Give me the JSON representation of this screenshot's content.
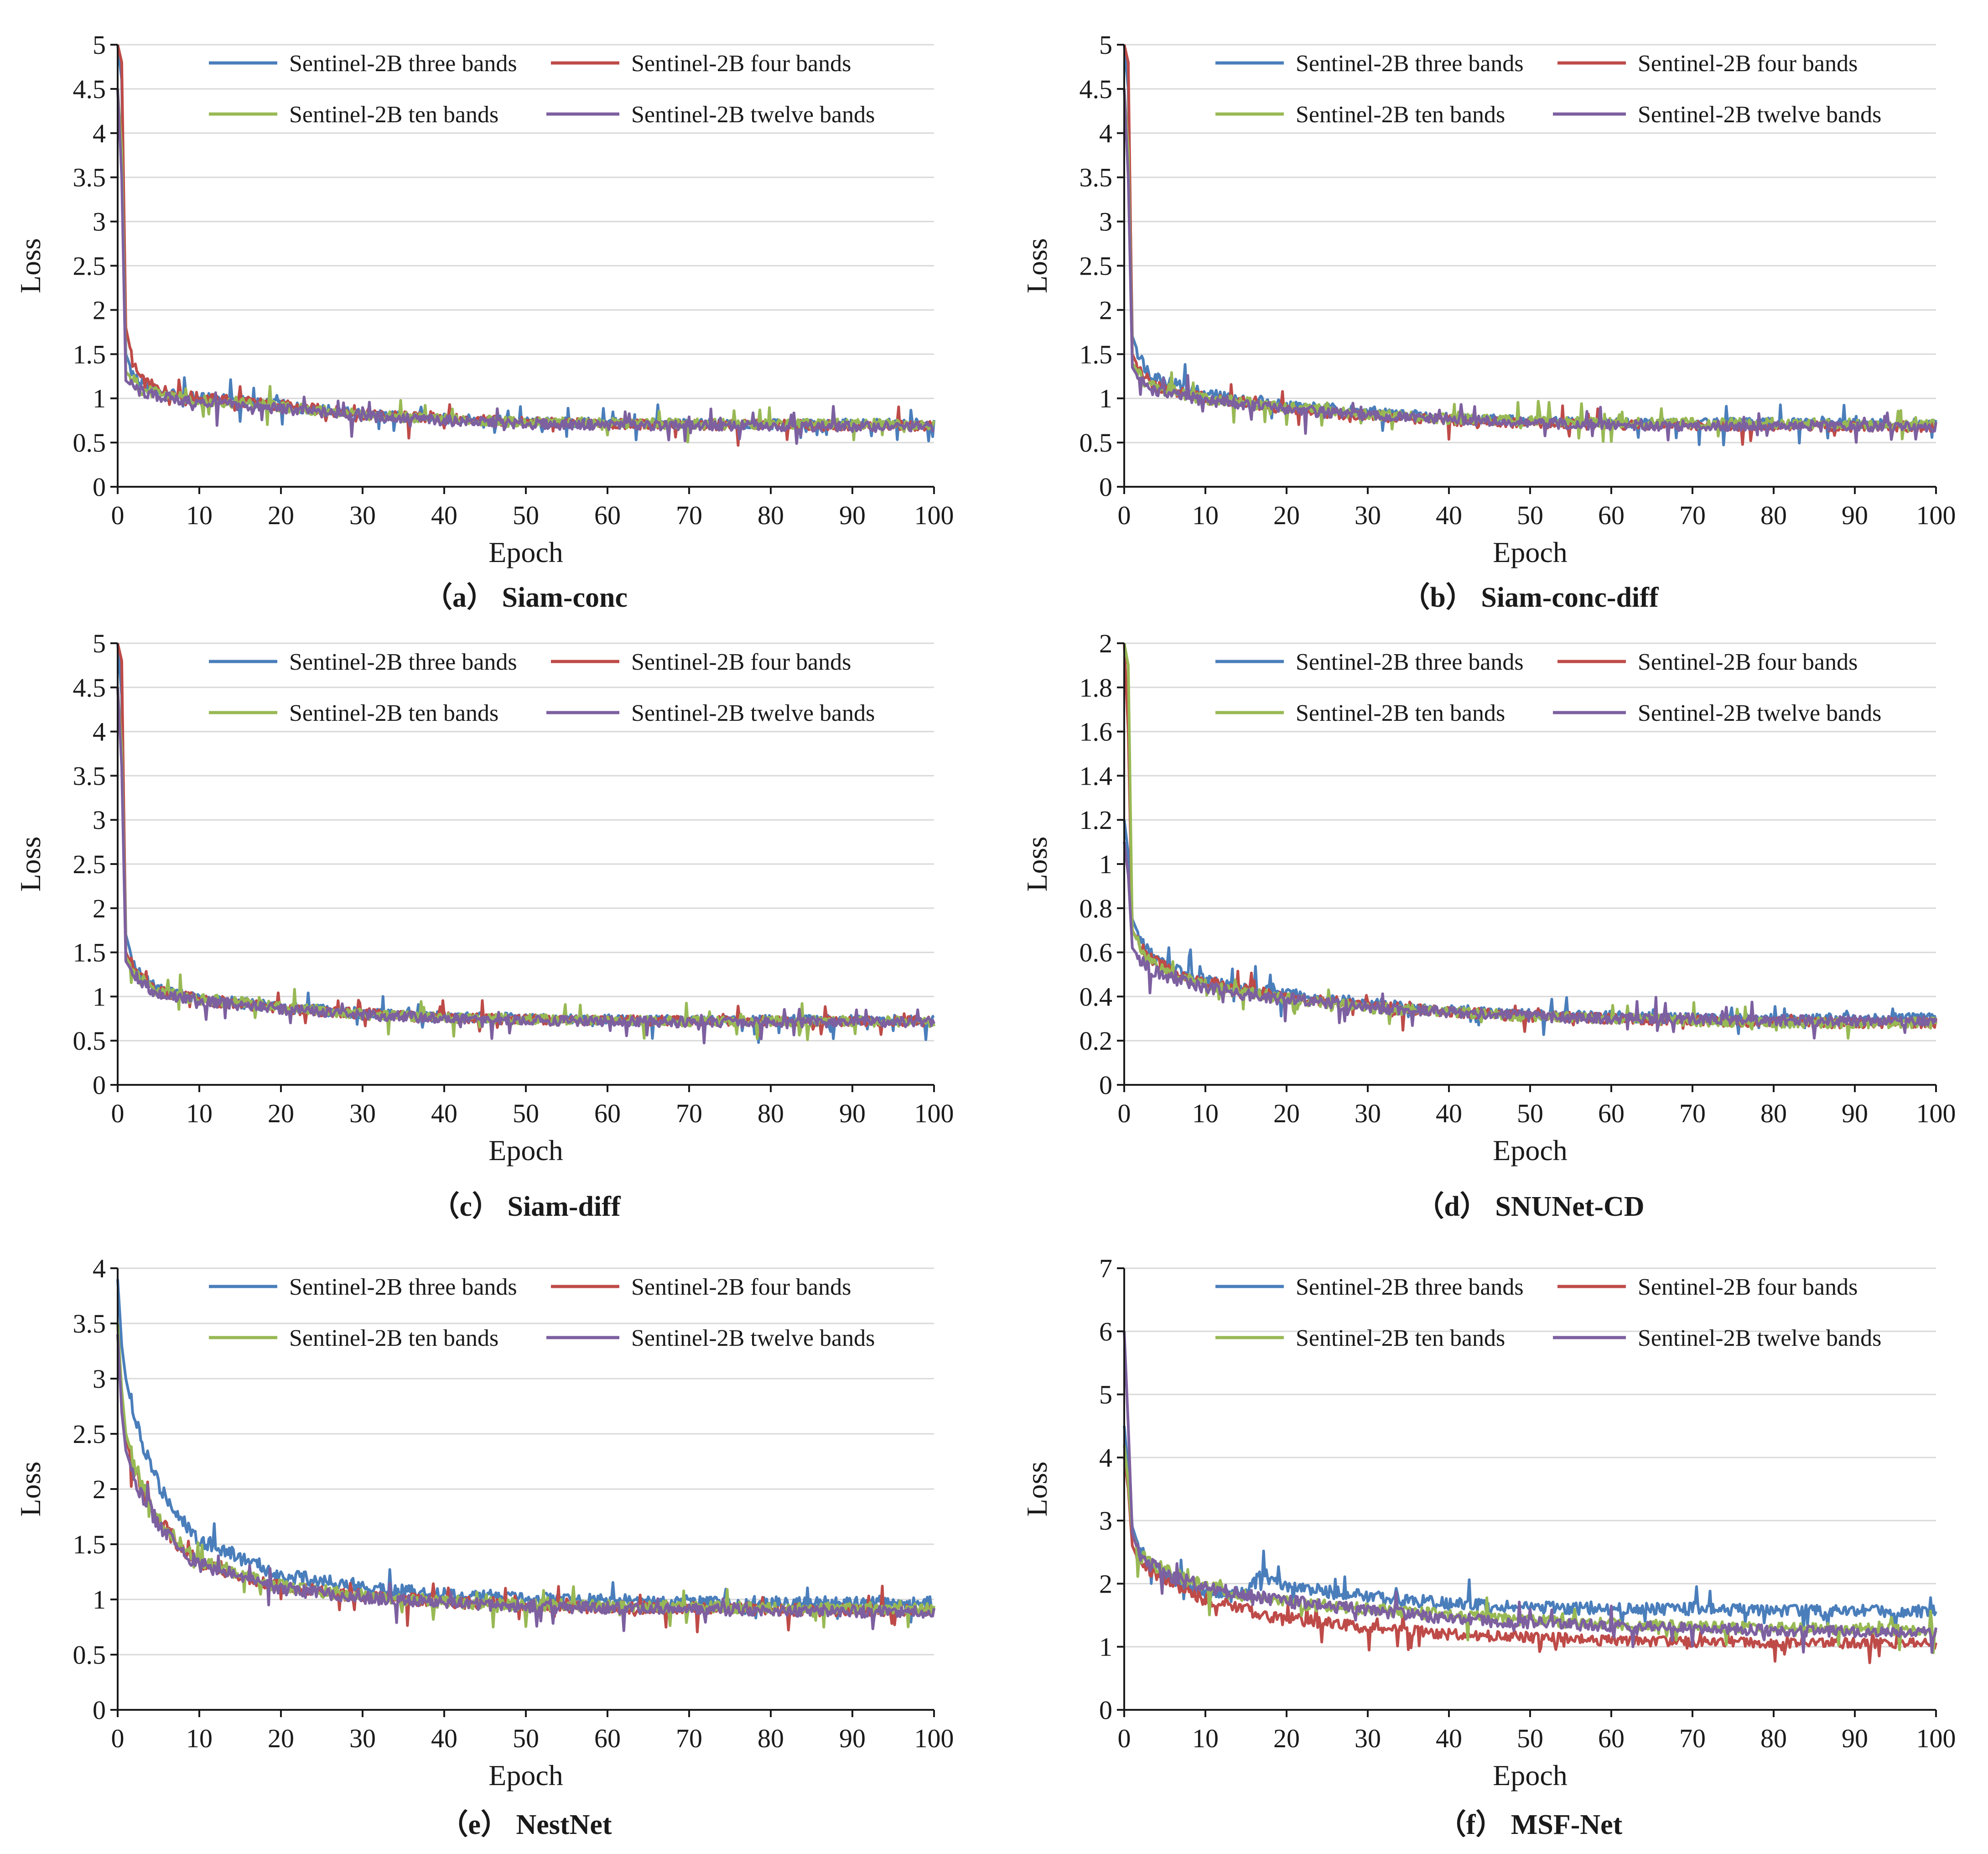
{
  "figure_caption_style": "bold",
  "colors": {
    "three": "#4a7ebb",
    "four": "#be4b48",
    "ten": "#98b954",
    "twelve": "#7d60a0",
    "grid": "#d9d9d9",
    "axis": "#1a1a1a"
  },
  "chart_data": [
    {
      "type": "line",
      "caption": "（a） Siam-conc",
      "xlabel": "Epoch",
      "ylabel": "Loss",
      "xlim": [
        0,
        100
      ],
      "ylim": [
        0,
        5
      ],
      "xticks": [
        0,
        10,
        20,
        30,
        40,
        50,
        60,
        70,
        80,
        90,
        100
      ],
      "yticks": [
        0,
        0.5,
        1,
        1.5,
        2,
        2.5,
        3,
        3.5,
        4,
        4.5,
        5
      ],
      "grid": true,
      "legend": "top",
      "x": [
        0,
        0.5,
        1,
        2,
        3,
        5,
        10,
        15,
        20,
        30,
        40,
        50,
        60,
        70,
        80,
        90,
        100
      ],
      "series": [
        {
          "name": "Sentinel-2B three bands",
          "color_key": "three",
          "values": [
            5,
            4.6,
            1.5,
            1.25,
            1.15,
            1.08,
            1.0,
            0.97,
            0.92,
            0.82,
            0.77,
            0.73,
            0.72,
            0.71,
            0.71,
            0.71,
            0.71
          ]
        },
        {
          "name": "Sentinel-2B four bands",
          "color_key": "four",
          "values": [
            5,
            4.8,
            1.8,
            1.35,
            1.2,
            1.1,
            1.0,
            0.97,
            0.92,
            0.82,
            0.77,
            0.73,
            0.71,
            0.7,
            0.7,
            0.69,
            0.69
          ]
        },
        {
          "name": "Sentinel-2B ten bands",
          "color_key": "ten",
          "values": [
            4.5,
            3.8,
            1.3,
            1.2,
            1.1,
            1.05,
            0.97,
            0.95,
            0.9,
            0.81,
            0.76,
            0.73,
            0.72,
            0.71,
            0.71,
            0.71,
            0.71
          ]
        },
        {
          "name": "Sentinel-2B twelve bands",
          "color_key": "twelve",
          "values": [
            4.5,
            3.5,
            1.2,
            1.12,
            1.07,
            1.02,
            0.95,
            0.92,
            0.88,
            0.8,
            0.75,
            0.71,
            0.7,
            0.69,
            0.69,
            0.68,
            0.68
          ]
        }
      ]
    },
    {
      "type": "line",
      "caption": "（b） Siam-conc-diff",
      "xlabel": "Epoch",
      "ylabel": "Loss",
      "xlim": [
        0,
        100
      ],
      "ylim": [
        0,
        5
      ],
      "xticks": [
        0,
        10,
        20,
        30,
        40,
        50,
        60,
        70,
        80,
        90,
        100
      ],
      "yticks": [
        0,
        0.5,
        1,
        1.5,
        2,
        2.5,
        3,
        3.5,
        4,
        4.5,
        5
      ],
      "grid": true,
      "legend": "top",
      "x": [
        0,
        0.5,
        1,
        2,
        3,
        5,
        10,
        15,
        20,
        30,
        40,
        50,
        60,
        70,
        80,
        90,
        100
      ],
      "series": [
        {
          "name": "Sentinel-2B three bands",
          "color_key": "three",
          "values": [
            5,
            4.5,
            1.7,
            1.45,
            1.3,
            1.2,
            1.05,
            0.97,
            0.92,
            0.85,
            0.78,
            0.74,
            0.72,
            0.72,
            0.72,
            0.71,
            0.71
          ]
        },
        {
          "name": "Sentinel-2B four bands",
          "color_key": "four",
          "values": [
            5,
            4.8,
            1.5,
            1.3,
            1.2,
            1.1,
            1.0,
            0.95,
            0.88,
            0.8,
            0.75,
            0.72,
            0.7,
            0.69,
            0.68,
            0.68,
            0.68
          ]
        },
        {
          "name": "Sentinel-2B ten bands",
          "color_key": "ten",
          "values": [
            4.5,
            3.8,
            1.4,
            1.25,
            1.15,
            1.08,
            1.0,
            0.95,
            0.9,
            0.82,
            0.77,
            0.74,
            0.72,
            0.72,
            0.72,
            0.71,
            0.71
          ]
        },
        {
          "name": "Sentinel-2B twelve bands",
          "color_key": "twelve",
          "values": [
            4.5,
            3.5,
            1.35,
            1.2,
            1.12,
            1.05,
            0.98,
            0.93,
            0.88,
            0.8,
            0.76,
            0.72,
            0.7,
            0.69,
            0.69,
            0.68,
            0.68
          ]
        }
      ]
    },
    {
      "type": "line",
      "caption": "（c） Siam-diff",
      "xlabel": "Epoch",
      "ylabel": "Loss",
      "xlim": [
        0,
        100
      ],
      "ylim": [
        0,
        5
      ],
      "xticks": [
        0,
        10,
        20,
        30,
        40,
        50,
        60,
        70,
        80,
        90,
        100
      ],
      "yticks": [
        0,
        0.5,
        1,
        1.5,
        2,
        2.5,
        3,
        3.5,
        4,
        4.5,
        5
      ],
      "grid": true,
      "legend": "top",
      "x": [
        0,
        0.5,
        1,
        2,
        3,
        5,
        10,
        15,
        20,
        30,
        40,
        50,
        60,
        70,
        80,
        90,
        100
      ],
      "series": [
        {
          "name": "Sentinel-2B three bands",
          "color_key": "three",
          "values": [
            5,
            4.4,
            1.7,
            1.35,
            1.22,
            1.08,
            0.97,
            0.93,
            0.88,
            0.81,
            0.77,
            0.75,
            0.74,
            0.73,
            0.73,
            0.73,
            0.73
          ]
        },
        {
          "name": "Sentinel-2B four bands",
          "color_key": "four",
          "values": [
            5,
            4.8,
            1.5,
            1.3,
            1.2,
            1.06,
            0.96,
            0.92,
            0.87,
            0.8,
            0.76,
            0.74,
            0.73,
            0.72,
            0.72,
            0.72,
            0.72
          ]
        },
        {
          "name": "Sentinel-2B ten bands",
          "color_key": "ten",
          "values": [
            4.5,
            3.8,
            1.45,
            1.28,
            1.18,
            1.05,
            0.97,
            0.93,
            0.88,
            0.8,
            0.76,
            0.74,
            0.73,
            0.72,
            0.72,
            0.72,
            0.72
          ]
        },
        {
          "name": "Sentinel-2B twelve bands",
          "color_key": "twelve",
          "values": [
            4.5,
            3.6,
            1.4,
            1.25,
            1.15,
            1.03,
            0.95,
            0.91,
            0.86,
            0.79,
            0.75,
            0.73,
            0.72,
            0.71,
            0.71,
            0.71,
            0.71
          ]
        }
      ]
    },
    {
      "type": "line",
      "caption": "（d） SNUNet-CD",
      "xlabel": "Epoch",
      "ylabel": "Loss",
      "xlim": [
        0,
        100
      ],
      "ylim": [
        0,
        2
      ],
      "xticks": [
        0,
        10,
        20,
        30,
        40,
        50,
        60,
        70,
        80,
        90,
        100
      ],
      "yticks": [
        0,
        0.2,
        0.4,
        0.6,
        0.8,
        1,
        1.2,
        1.4,
        1.6,
        1.8,
        2
      ],
      "grid": true,
      "legend": "top",
      "x": [
        0,
        0.5,
        1,
        2,
        3,
        5,
        10,
        15,
        20,
        30,
        40,
        50,
        60,
        70,
        80,
        90,
        100
      ],
      "series": [
        {
          "name": "Sentinel-2B three bands",
          "color_key": "three",
          "values": [
            1.2,
            1.05,
            0.75,
            0.66,
            0.6,
            0.54,
            0.47,
            0.44,
            0.41,
            0.37,
            0.34,
            0.32,
            0.31,
            0.3,
            0.3,
            0.3,
            0.3
          ]
        },
        {
          "name": "Sentinel-2B four bands",
          "color_key": "four",
          "values": [
            2.0,
            1.6,
            0.7,
            0.63,
            0.58,
            0.53,
            0.46,
            0.43,
            0.4,
            0.36,
            0.33,
            0.31,
            0.3,
            0.29,
            0.28,
            0.28,
            0.28
          ]
        },
        {
          "name": "Sentinel-2B ten bands",
          "color_key": "ten",
          "values": [
            2.0,
            1.9,
            0.7,
            0.62,
            0.57,
            0.52,
            0.45,
            0.42,
            0.39,
            0.35,
            0.33,
            0.31,
            0.3,
            0.29,
            0.28,
            0.28,
            0.28
          ]
        },
        {
          "name": "Sentinel-2B twelve bands",
          "color_key": "twelve",
          "values": [
            1.1,
            0.95,
            0.62,
            0.57,
            0.53,
            0.49,
            0.44,
            0.41,
            0.39,
            0.35,
            0.33,
            0.31,
            0.3,
            0.3,
            0.29,
            0.29,
            0.29
          ]
        }
      ]
    },
    {
      "type": "line",
      "caption": "（e） NestNet",
      "xlabel": "Epoch",
      "ylabel": "Loss",
      "xlim": [
        0,
        100
      ],
      "ylim": [
        0,
        4
      ],
      "xticks": [
        0,
        10,
        20,
        30,
        40,
        50,
        60,
        70,
        80,
        90,
        100
      ],
      "yticks": [
        0,
        0.5,
        1,
        1.5,
        2,
        2.5,
        3,
        3.5,
        4
      ],
      "grid": true,
      "legend": "top",
      "x": [
        0,
        0.5,
        1,
        2,
        3,
        5,
        8,
        10,
        15,
        20,
        30,
        40,
        50,
        60,
        70,
        80,
        90,
        100
      ],
      "series": [
        {
          "name": "Sentinel-2B three bands",
          "color_key": "three",
          "values": [
            3.9,
            3.3,
            3.0,
            2.65,
            2.4,
            2.05,
            1.7,
            1.55,
            1.38,
            1.22,
            1.12,
            1.05,
            1.01,
            0.99,
            0.98,
            0.97,
            0.97,
            0.97
          ]
        },
        {
          "name": "Sentinel-2B four bands",
          "color_key": "four",
          "values": [
            3.5,
            2.8,
            2.45,
            2.2,
            2.0,
            1.72,
            1.45,
            1.35,
            1.22,
            1.12,
            1.03,
            0.98,
            0.95,
            0.93,
            0.92,
            0.91,
            0.9,
            0.9
          ]
        },
        {
          "name": "Sentinel-2B ten bands",
          "color_key": "ten",
          "values": [
            3.5,
            2.9,
            2.5,
            2.25,
            2.02,
            1.74,
            1.47,
            1.36,
            1.22,
            1.12,
            1.03,
            0.98,
            0.95,
            0.94,
            0.93,
            0.92,
            0.92,
            0.92
          ]
        },
        {
          "name": "Sentinel-2B twelve bands",
          "color_key": "twelve",
          "values": [
            3.4,
            2.7,
            2.35,
            2.12,
            1.95,
            1.68,
            1.42,
            1.32,
            1.2,
            1.1,
            1.02,
            0.97,
            0.94,
            0.92,
            0.91,
            0.9,
            0.89,
            0.89
          ]
        }
      ]
    },
    {
      "type": "line",
      "caption": "（f） MSF-Net",
      "xlabel": "Epoch",
      "ylabel": "Loss",
      "xlim": [
        0,
        100
      ],
      "ylim": [
        0,
        7
      ],
      "xticks": [
        0,
        10,
        20,
        30,
        40,
        50,
        60,
        70,
        80,
        90,
        100
      ],
      "yticks": [
        0,
        1,
        2,
        3,
        4,
        5,
        6,
        7
      ],
      "grid": true,
      "legend": "top",
      "x": [
        0,
        0.5,
        1,
        2,
        5,
        10,
        15,
        17,
        20,
        30,
        40,
        50,
        60,
        70,
        80,
        90,
        100
      ],
      "series": [
        {
          "name": "Sentinel-2B three bands",
          "color_key": "three",
          "values": [
            4.5,
            3.8,
            2.9,
            2.5,
            2.15,
            1.85,
            1.85,
            2.15,
            1.95,
            1.8,
            1.68,
            1.62,
            1.6,
            1.6,
            1.58,
            1.57,
            1.56
          ]
        },
        {
          "name": "Sentinel-2B four bands",
          "color_key": "four",
          "values": [
            4.0,
            3.5,
            2.6,
            2.3,
            2.05,
            1.75,
            1.6,
            1.5,
            1.45,
            1.3,
            1.2,
            1.15,
            1.1,
            1.08,
            1.07,
            1.06,
            1.05
          ]
        },
        {
          "name": "Sentinel-2B ten bands",
          "color_key": "ten",
          "values": [
            4.2,
            3.6,
            2.8,
            2.45,
            2.2,
            1.95,
            1.8,
            1.75,
            1.7,
            1.6,
            1.5,
            1.42,
            1.36,
            1.32,
            1.3,
            1.28,
            1.27
          ]
        },
        {
          "name": "Sentinel-2B twelve bands",
          "color_key": "twelve",
          "values": [
            6.0,
            4.5,
            2.8,
            2.4,
            2.15,
            1.95,
            1.82,
            1.78,
            1.72,
            1.58,
            1.45,
            1.38,
            1.33,
            1.29,
            1.26,
            1.24,
            1.23
          ]
        }
      ]
    }
  ]
}
